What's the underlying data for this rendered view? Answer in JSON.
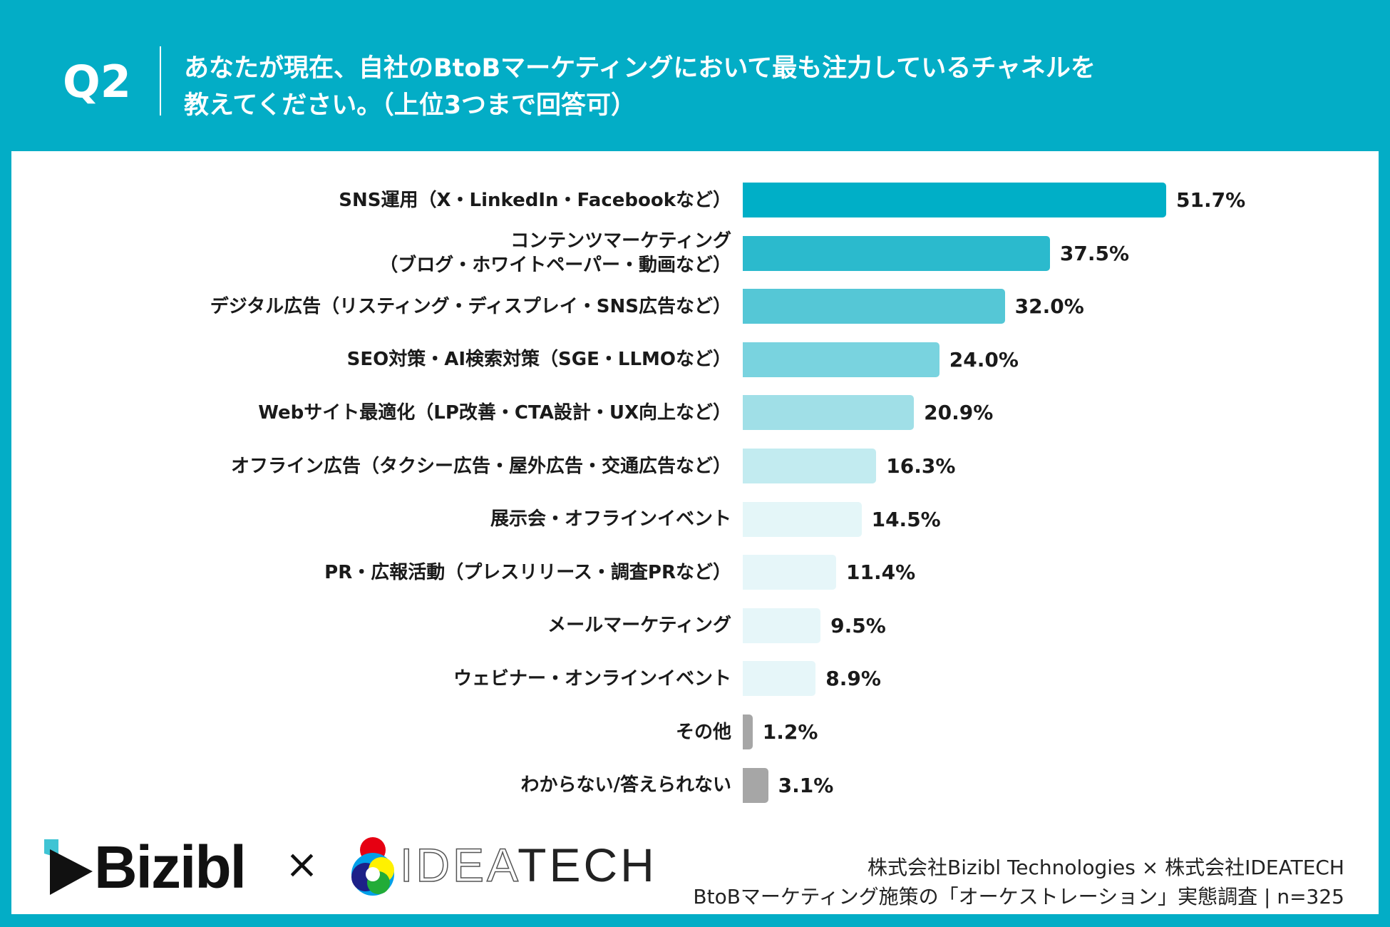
{
  "header": {
    "q": "Q2",
    "title_line1": "あなたが現在、自社のBtoBマーケティングにおいて最も注力しているチャネルを",
    "title_line2": "教えてください。（上位3つまで回答可）"
  },
  "chart_data": {
    "type": "bar",
    "orientation": "horizontal",
    "categories": [
      "SNS運用（X・LinkedIn・Facebookなど）",
      "コンテンツマーケティング\n（ブログ・ホワイトペーパー・動画など）",
      "デジタル広告（リスティング・ディスプレイ・SNS広告など）",
      "SEO対策・AI検索対策（SGE・LLMOなど）",
      "Webサイト最適化（LP改善・CTA設計・UX向上など）",
      "オフライン広告（タクシー広告・屋外広告・交通広告など）",
      "展示会・オフラインイベント",
      "PR・広報活動（プレスリリース・調査PRなど）",
      "メールマーケティング",
      "ウェビナー・オンラインイベント",
      "その他",
      "わからない/答えられない"
    ],
    "values": [
      51.7,
      37.5,
      32.0,
      24.0,
      20.9,
      16.3,
      14.5,
      11.4,
      9.5,
      8.9,
      1.2,
      3.1
    ],
    "value_labels": [
      "51.7%",
      "37.5%",
      "32.0%",
      "24.0%",
      "20.9%",
      "16.3%",
      "14.5%",
      "11.4%",
      "9.5%",
      "8.9%",
      "1.2%",
      "3.1%"
    ],
    "colors": [
      "#00afc7",
      "#2bbacd",
      "#55c7d6",
      "#79d3df",
      "#a0dfe7",
      "#c2ebf0",
      "#e4f6f8",
      "#e6f6f9",
      "#e6f6f9",
      "#e6f6f9",
      "#a6a6a6",
      "#a6a6a6"
    ],
    "grid": false,
    "unit": "%"
  },
  "logos": {
    "bizibl": "Bizibl",
    "times": "×",
    "ideatech_outline": "IDEA",
    "ideatech_solid": "TECH"
  },
  "footer": {
    "line1": "株式会社Bizibl Technologies × 株式会社IDEATECH",
    "line2": "BtoBマーケティング施策の「オーケストレーション」実態調査 | n=325"
  },
  "colors": {
    "brand": "#03adc6"
  }
}
